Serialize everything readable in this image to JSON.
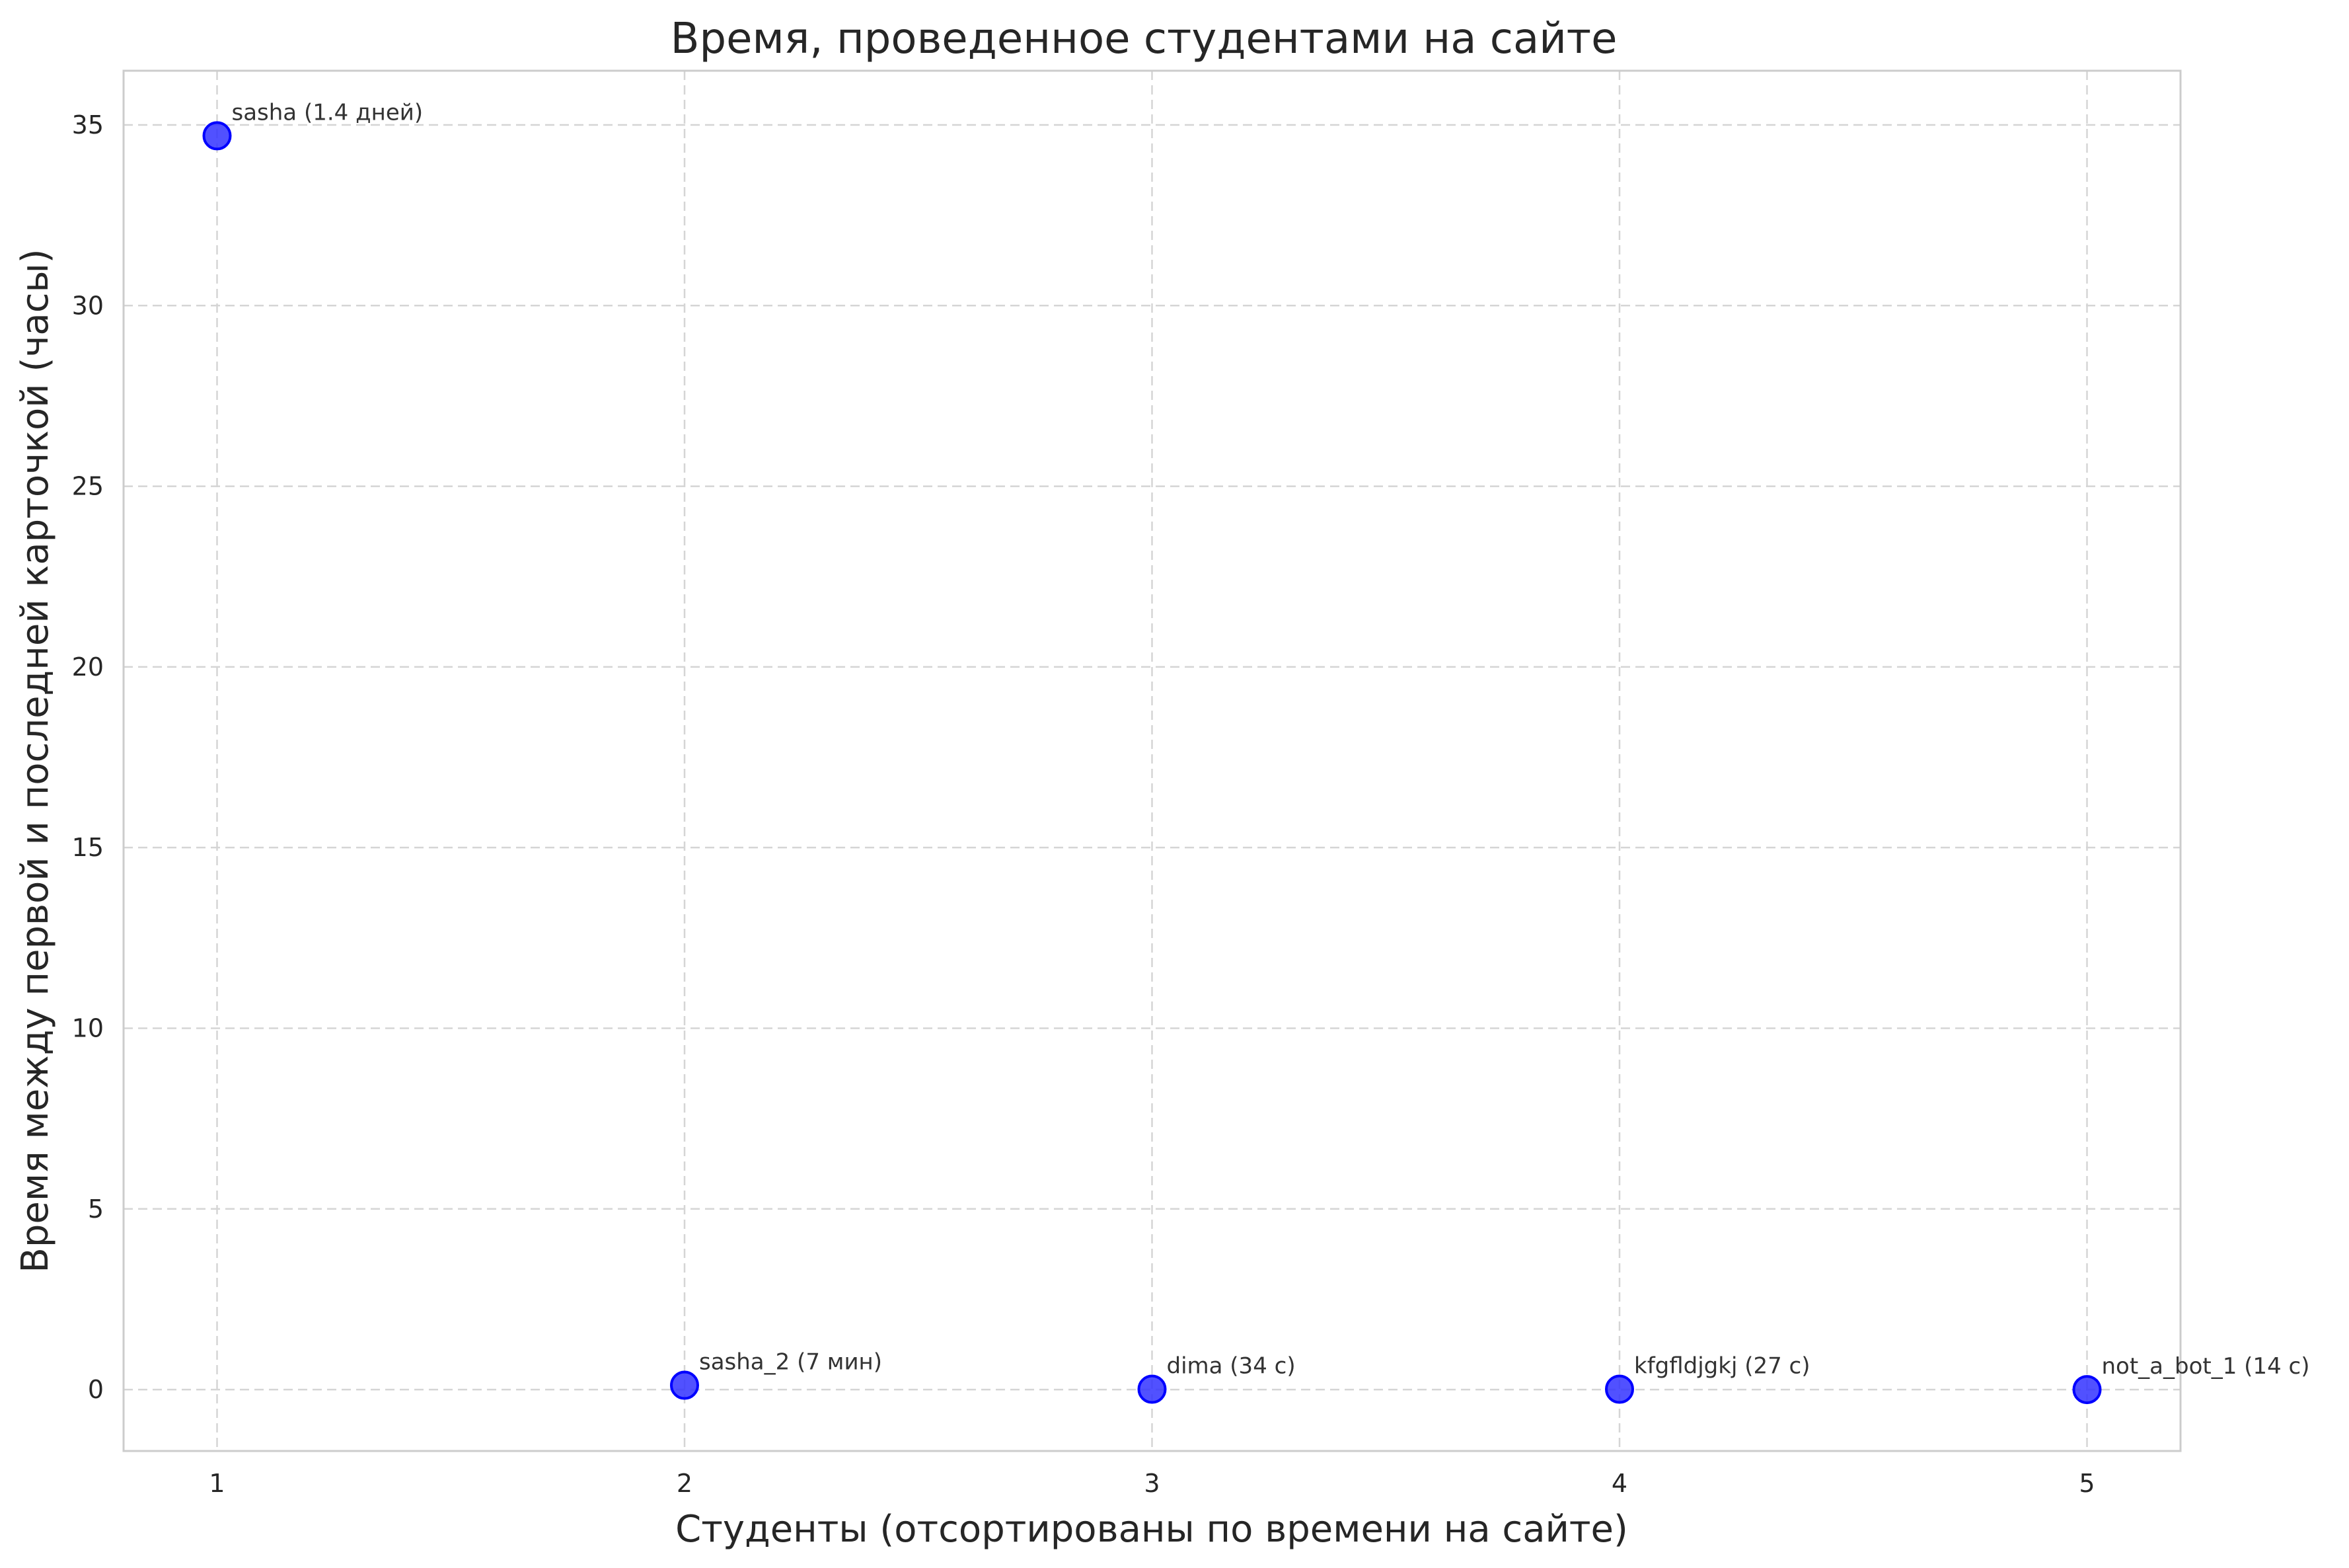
{
  "chart_data": {
    "type": "scatter",
    "title": "Время, проведенное студентами на сайте",
    "xlabel": "Студенты (отсортированы по времени на сайте)",
    "ylabel": "Время между первой и последней карточкой (часы)",
    "xlim": [
      0.8,
      5.2
    ],
    "ylim": [
      -1.7,
      36.5
    ],
    "xticks": [
      1,
      2,
      3,
      4,
      5
    ],
    "yticks": [
      0,
      5,
      10,
      15,
      20,
      25,
      30,
      35
    ],
    "grid": true,
    "marker_color": "#3333ff",
    "marker_edge_color": "#0000ff",
    "points": [
      {
        "x": 1,
        "y": 34.7,
        "label": "sasha (1.4 дней)"
      },
      {
        "x": 2,
        "y": 0.12,
        "label": "sasha_2 (7 мин)"
      },
      {
        "x": 3,
        "y": 0.01,
        "label": "dima (34 с)"
      },
      {
        "x": 4,
        "y": 0.01,
        "label": "kfgfldjgkj (27 с)"
      },
      {
        "x": 5,
        "y": 0.0,
        "label": "not_a_bot_1 (14 с)"
      }
    ]
  }
}
